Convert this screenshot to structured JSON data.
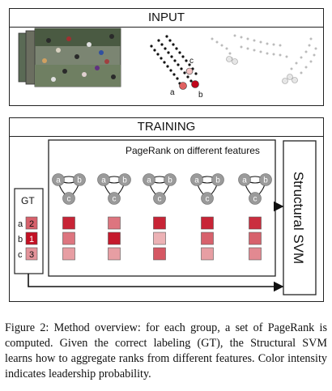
{
  "input": {
    "header": "INPUT"
  },
  "input_trajectory_labels": [
    "c",
    "a",
    "b"
  ],
  "training": {
    "header": "TRAINING",
    "pagerank_title": "PageRank on different features",
    "svm_label": "Structural SVM",
    "gt_label": "GT"
  },
  "graph_node_labels": [
    "a",
    "b",
    "c"
  ],
  "gt": {
    "rows": [
      {
        "letter": "a",
        "rank": "2",
        "intensity": 0.55
      },
      {
        "letter": "b",
        "rank": "1",
        "intensity": 0.95
      },
      {
        "letter": "c",
        "rank": "3",
        "intensity": 0.3
      }
    ]
  },
  "feature_columns": [
    {
      "intensities": [
        0.85,
        0.45,
        0.25
      ]
    },
    {
      "intensities": [
        0.45,
        0.9,
        0.25
      ]
    },
    {
      "intensities": [
        0.85,
        0.15,
        0.6
      ]
    },
    {
      "intensities": [
        0.85,
        0.55,
        0.25
      ]
    },
    {
      "intensities": [
        0.8,
        0.55,
        0.35
      ]
    }
  ],
  "colors": {
    "dark_red": "#c0061b",
    "light_red": "#f4d0d0",
    "node_gray": "#9a9a9a"
  },
  "caption": "Figure 2: Method overview: for each group, a set of PageRank is computed. Given the correct labeling (GT), the Structural SVM learns how to aggregate ranks from different features. Color intensity indicates leadership probability."
}
